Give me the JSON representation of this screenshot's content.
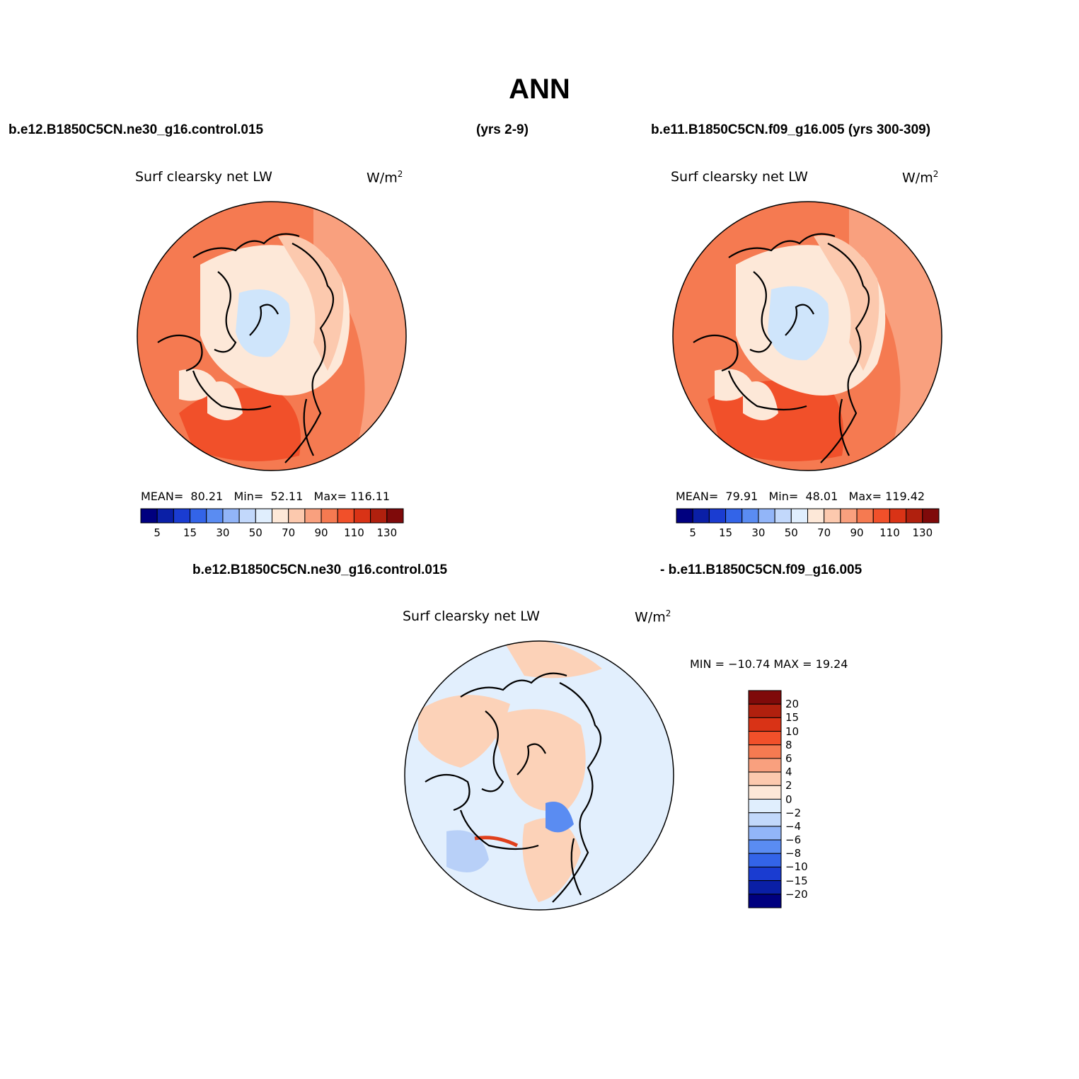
{
  "title": "ANN",
  "headers": {
    "case1": "b.e12.B1850C5CN.ne30_g16.control.015",
    "case1_years": "(yrs 2-9)",
    "case2": "b.e11.B1850C5CN.f09_g16.005 (yrs 300-309)",
    "diff_left": "b.e12.B1850C5CN.ne30_g16.control.015",
    "diff_right": "- b.e11.B1850C5CN.f09_g16.005"
  },
  "panels": {
    "left": {
      "variable": "Surf clearsky net LW",
      "units_base": "W/m",
      "units_sup": "2",
      "mean_label": "MEAN=",
      "mean": "80.21",
      "min_label": "Min=",
      "min": "52.11",
      "max_label": "Max=",
      "max": "116.11"
    },
    "right": {
      "variable": "Surf clearsky net LW",
      "units_base": "W/m",
      "units_sup": "2",
      "mean_label": "MEAN=",
      "mean": "79.91",
      "min_label": "Min=",
      "min": "48.01",
      "max_label": "Max=",
      "max": "119.42"
    },
    "diff": {
      "variable": "Surf clearsky net LW",
      "units_base": "W/m",
      "units_sup": "2",
      "minmax_text": "MIN = −10.74 MAX =   19.24"
    }
  },
  "colorbar_abs": {
    "ticks": [
      "5",
      "15",
      "30",
      "50",
      "70",
      "90",
      "110",
      "130"
    ],
    "colors": [
      "#00007f",
      "#0a1fa6",
      "#1a3cd1",
      "#3364e8",
      "#5a8cf2",
      "#92b5f8",
      "#c2d8fb",
      "#e0eefd",
      "#fde8d8",
      "#fcc9ae",
      "#f9a07e",
      "#f57a51",
      "#f1502a",
      "#d93316",
      "#b0200e",
      "#7f0a0a"
    ]
  },
  "colorbar_diff": {
    "ticks": [
      "20",
      "15",
      "10",
      "8",
      "6",
      "4",
      "2",
      "0",
      "−2",
      "−4",
      "−6",
      "−8",
      "−10",
      "−15",
      "−20"
    ],
    "colors": [
      "#7f0a0a",
      "#b0200e",
      "#d93316",
      "#f1502a",
      "#f57a51",
      "#f9a07e",
      "#fcc9ae",
      "#fde8d8",
      "#e0eefd",
      "#c2d8fb",
      "#92b5f8",
      "#5a8cf2",
      "#3364e8",
      "#1a3cd1",
      "#0a1fa6",
      "#00007f"
    ]
  },
  "palette": {
    "ocean_warm": "#f57a51",
    "ocean_hot": "#f1502a",
    "mid_warm": "#f9a07e",
    "land_pale": "#fde8d8",
    "land_cool": "#fcc9ae",
    "ice_blue": "#cfe5fb",
    "diff_bg": "#e2effd",
    "diff_warm": "#fcd2b8",
    "diff_cool": "#b8d0f8",
    "diff_deep": "#5a8cf2",
    "diff_hot": "#e0401c"
  }
}
